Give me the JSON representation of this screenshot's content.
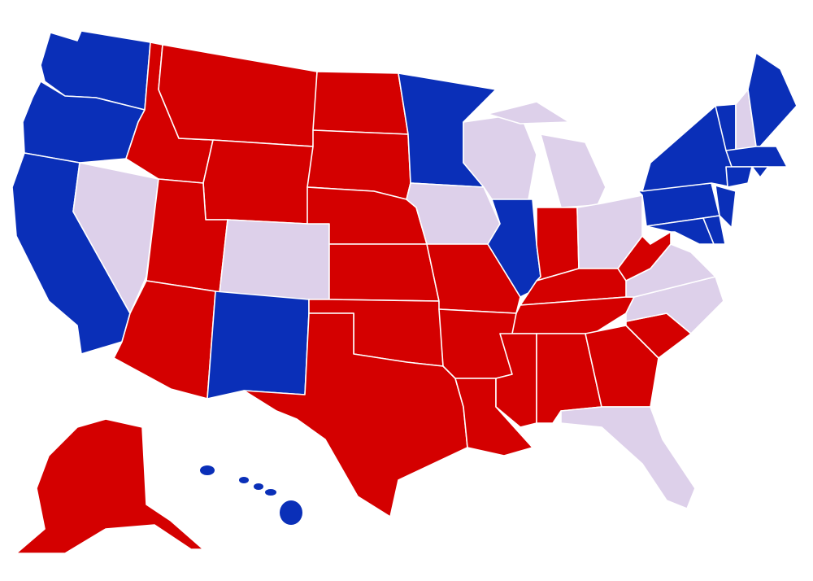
{
  "colors": {
    "red": "#d40000",
    "blue": "#0a2fb8",
    "purple": "#ddd0ea"
  },
  "state_colors": {
    "WA": "blue",
    "OR": "blue",
    "CA": "blue",
    "NV": "purple",
    "ID": "red",
    "MT": "red",
    "WY": "red",
    "UT": "red",
    "CO": "purple",
    "AZ": "red",
    "NM": "blue",
    "ND": "red",
    "SD": "red",
    "NE": "red",
    "KS": "red",
    "OK": "red",
    "TX": "red",
    "MN": "blue",
    "IA": "purple",
    "MO": "red",
    "AR": "red",
    "LA": "red",
    "WI": "purple",
    "IL": "blue",
    "MI": "purple",
    "MI-UP": "purple",
    "IN": "red",
    "OH": "purple",
    "KY": "red",
    "TN": "red",
    "MS": "red",
    "AL": "red",
    "GA": "red",
    "SC": "red",
    "NC": "purple",
    "VA": "purple",
    "WV": "red",
    "PA": "blue",
    "NY": "blue",
    "NJ": "blue",
    "MD": "blue",
    "DE": "blue",
    "VT": "blue",
    "NH": "purple",
    "ME": "blue",
    "MA": "blue",
    "CT": "blue",
    "RI": "blue",
    "FL": "purple",
    "AK": "red",
    "HI": "blue"
  }
}
